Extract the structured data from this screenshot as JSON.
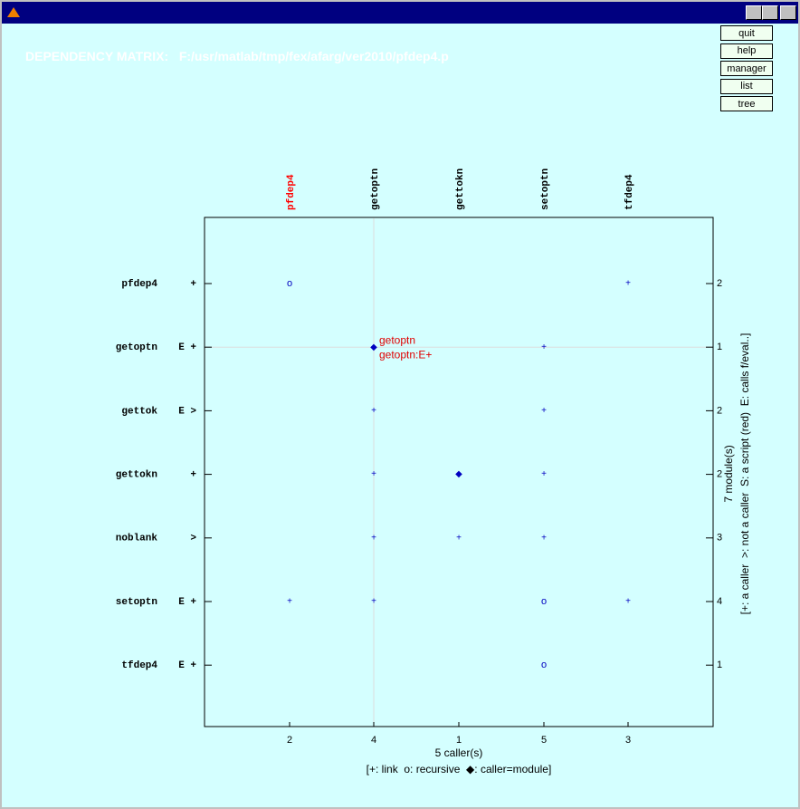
{
  "window": {
    "title": "DEPENDENCY MATRIX:   F:/usr/matlab/tmp/fex/afarg/ver2010/pfdep4.p"
  },
  "buttons": [
    "quit",
    "help",
    "manager",
    "list",
    "tree"
  ],
  "columns": [
    {
      "label": "pfdep4",
      "count": 2,
      "color": "#ff0000"
    },
    {
      "label": "getoptn",
      "count": 4,
      "color": "#000000"
    },
    {
      "label": "gettokn",
      "count": 1,
      "color": "#000000"
    },
    {
      "label": "setoptn",
      "count": 5,
      "color": "#000000"
    },
    {
      "label": "tfdep4",
      "count": 3,
      "color": "#000000"
    }
  ],
  "rows": [
    {
      "name": "pfdep4",
      "flags": "+",
      "count": 2,
      "cells": [
        "o",
        null,
        null,
        null,
        "+"
      ]
    },
    {
      "name": "getoptn",
      "flags": "E +",
      "count": 1,
      "cells": [
        null,
        "◆",
        null,
        "+",
        null
      ]
    },
    {
      "name": "gettok",
      "flags": "E >",
      "count": 2,
      "cells": [
        null,
        "+",
        null,
        "+",
        null
      ]
    },
    {
      "name": "gettokn",
      "flags": "+",
      "count": 2,
      "cells": [
        null,
        "+",
        "◆",
        "+",
        null
      ]
    },
    {
      "name": "noblank",
      "flags": ">",
      "count": 3,
      "cells": [
        null,
        "+",
        "+",
        "+",
        null
      ]
    },
    {
      "name": "setoptn",
      "flags": "E +",
      "count": 4,
      "cells": [
        "+",
        "+",
        null,
        "o",
        "+"
      ]
    },
    {
      "name": "tfdep4",
      "flags": "E +",
      "count": 1,
      "cells": [
        null,
        null,
        null,
        "o",
        null
      ]
    }
  ],
  "annotation": [
    "getoptn",
    "getoptn:E+"
  ],
  "x_label": "5 caller(s)",
  "x_legend": "[+: link  o: recursive  ◆: caller=module]",
  "y_label": "7 module(s)",
  "y_legend": "[+: a caller  >: not a caller  S: a script (red)  E: calls f/eval..]"
}
